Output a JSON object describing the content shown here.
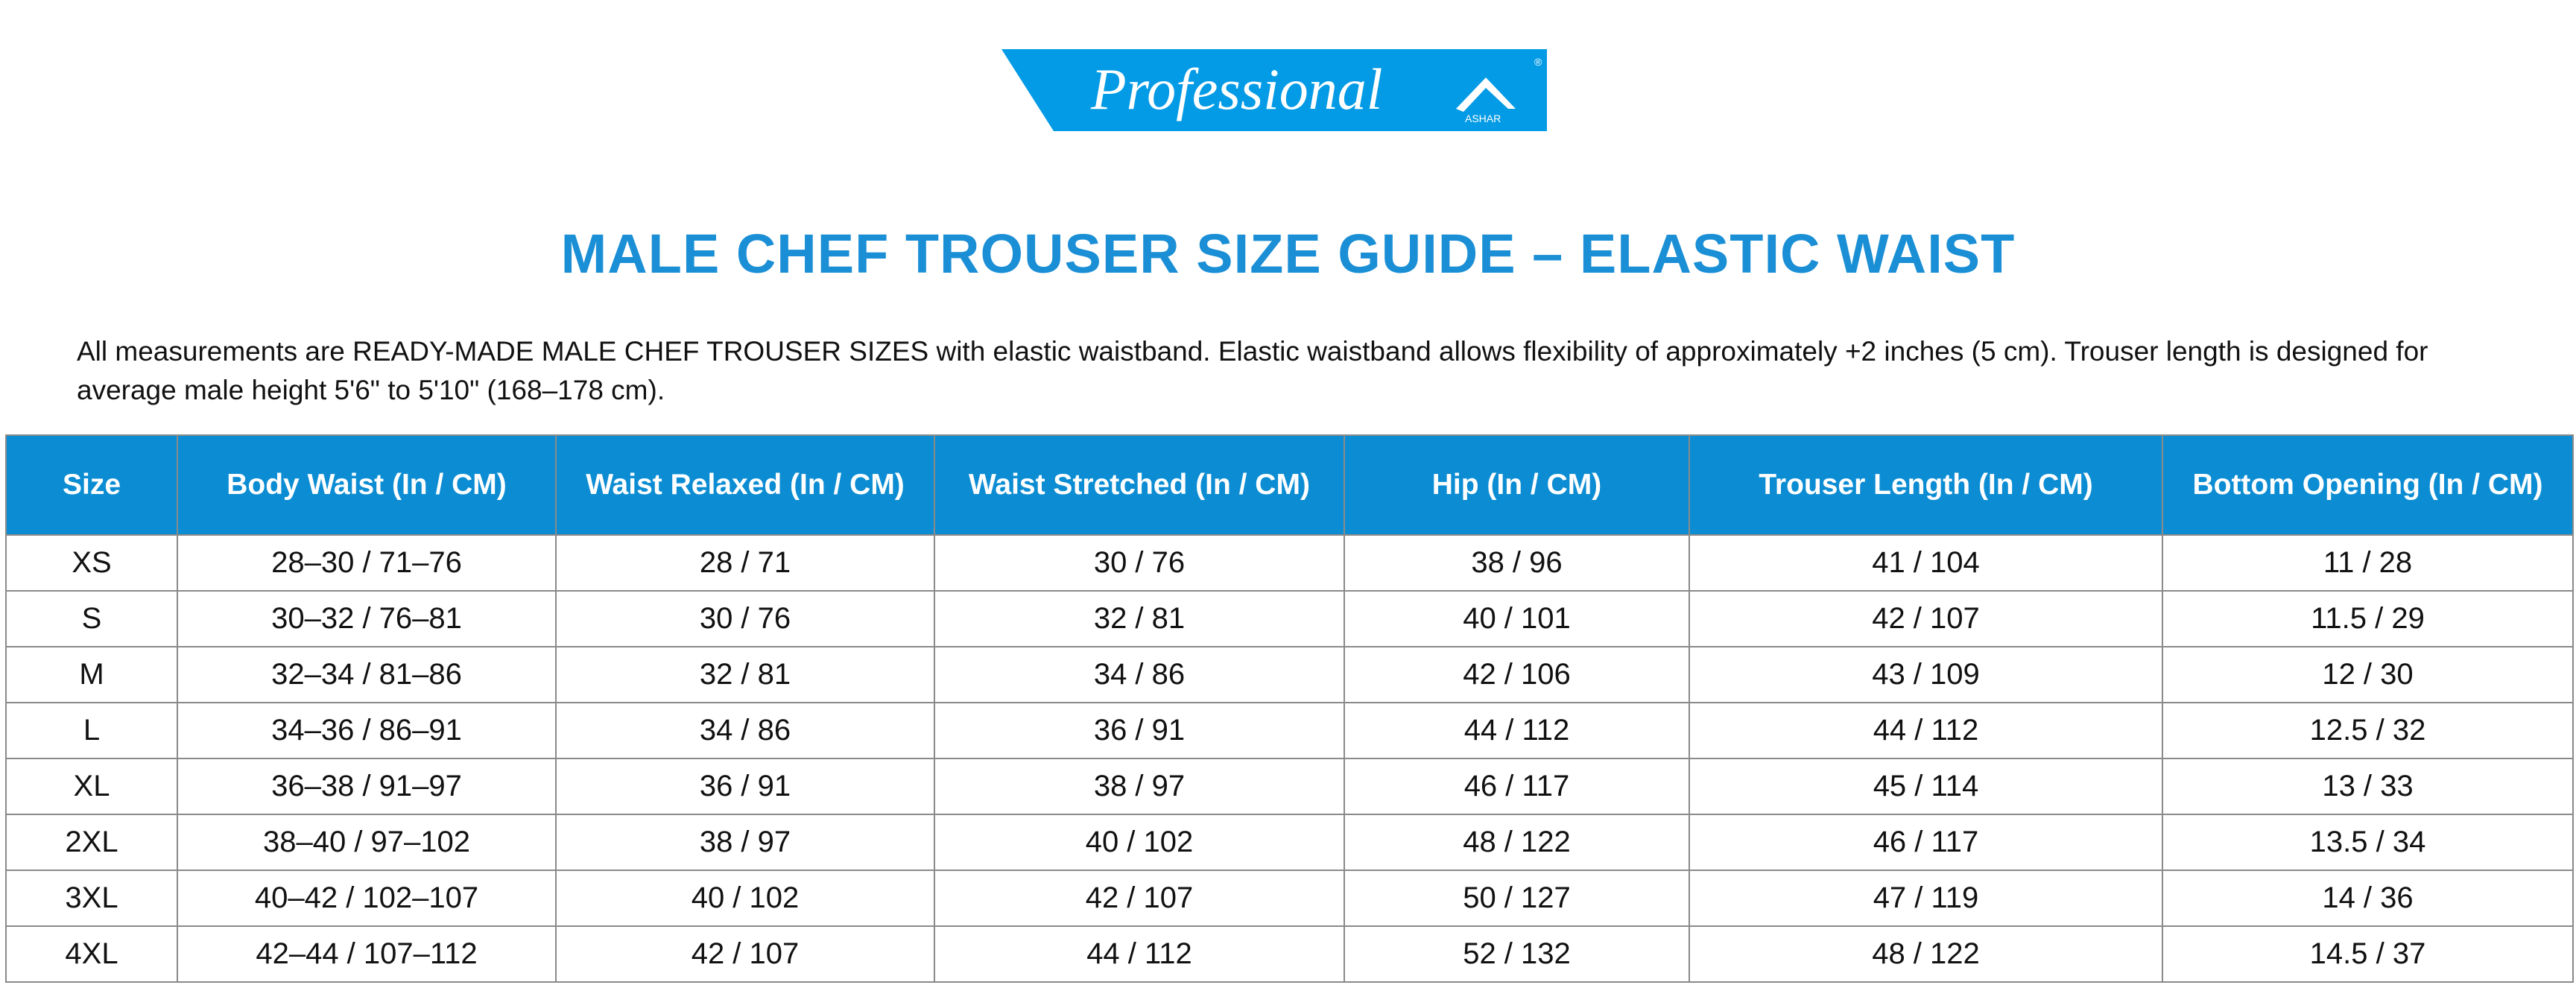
{
  "logo": {
    "text": "Professional",
    "sub_text": "ASHAR",
    "registered": "®",
    "color": "#039be5"
  },
  "title": "MALE CHEF TROUSER SIZE GUIDE – ELASTIC WAIST",
  "description": "All measurements are READY-MADE MALE CHEF TROUSER SIZES with elastic waistband. Elastic waistband allows flexibility of approximately +2 inches (5 cm). Trouser length is designed for average male height 5'6\" to 5'10\" (168–178 cm).",
  "colors": {
    "accent": "#1b8fd5",
    "header_bg": "#0c8dd3"
  },
  "table": {
    "headers": [
      "Size",
      "Body Waist (In / CM)",
      "Waist Relaxed (In / CM)",
      "Waist Stretched (In / CM)",
      "Hip (In / CM)",
      "Trouser Length (In / CM)",
      "Bottom Opening (In / CM)"
    ],
    "rows": [
      [
        "XS",
        "28–30 / 71–76",
        "28 / 71",
        "30 / 76",
        "38 / 96",
        "41 / 104",
        "11 / 28"
      ],
      [
        "S",
        "30–32 / 76–81",
        "30 / 76",
        "32 / 81",
        "40 / 101",
        "42 / 107",
        "11.5 / 29"
      ],
      [
        "M",
        "32–34 / 81–86",
        "32 / 81",
        "34 / 86",
        "42 / 106",
        "43 / 109",
        "12 / 30"
      ],
      [
        "L",
        "34–36 / 86–91",
        "34 / 86",
        "36 / 91",
        "44 / 112",
        "44 / 112",
        "12.5 / 32"
      ],
      [
        "XL",
        "36–38 / 91–97",
        "36 / 91",
        "38 / 97",
        "46 / 117",
        "45 / 114",
        "13 / 33"
      ],
      [
        "2XL",
        "38–40 / 97–102",
        "38 / 97",
        "40 / 102",
        "48 / 122",
        "46 / 117",
        "13.5 / 34"
      ],
      [
        "3XL",
        "40–42 / 102–107",
        "40 / 102",
        "42 / 107",
        "50 / 127",
        "47 / 119",
        "14 / 36"
      ],
      [
        "4XL",
        "42–44 / 107–112",
        "42 / 107",
        "44 / 112",
        "52 / 132",
        "48 / 122",
        "14.5 / 37"
      ]
    ]
  }
}
